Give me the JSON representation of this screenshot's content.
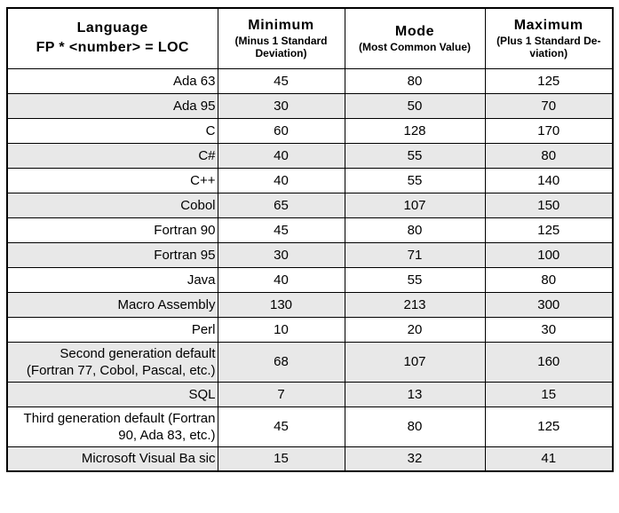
{
  "colors": {
    "shaded_row": "#e8e8e8",
    "border": "#000000",
    "background": "#ffffff",
    "text": "#000000"
  },
  "table": {
    "header": {
      "language_title": "Language",
      "language_sub": "FP * <number> = LOC",
      "minimum_title": "Minimum",
      "minimum_sub": "(Minus 1 Standard Deviation)",
      "mode_title": "Mode",
      "mode_sub": "(Most Common Value)",
      "maximum_title": "Maximum",
      "maximum_sub": "(Plus 1 Standard De­viation)"
    },
    "rows": [
      {
        "language": "Ada 63",
        "minimum": "45",
        "mode": "80",
        "maximum": "125",
        "shaded": false
      },
      {
        "language": "Ada 95",
        "minimum": "30",
        "mode": "50",
        "maximum": "70",
        "shaded": true
      },
      {
        "language": "C",
        "minimum": "60",
        "mode": "128",
        "maximum": "170",
        "shaded": false
      },
      {
        "language": "C#",
        "minimum": "40",
        "mode": "55",
        "maximum": "80",
        "shaded": true
      },
      {
        "language": "C++",
        "minimum": "40",
        "mode": "55",
        "maximum": "140",
        "shaded": false
      },
      {
        "language": "Cobol",
        "minimum": "65",
        "mode": "107",
        "maximum": "150",
        "shaded": true
      },
      {
        "language": "Fortran 90",
        "minimum": "45",
        "mode": "80",
        "maximum": "125",
        "shaded": false
      },
      {
        "language": "Fortran 95",
        "minimum": "30",
        "mode": "71",
        "maximum": "100",
        "shaded": true
      },
      {
        "language": "Java",
        "minimum": "40",
        "mode": "55",
        "maximum": "80",
        "shaded": false
      },
      {
        "language": "Macro Assembly",
        "minimum": "130",
        "mode": "213",
        "maximum": "300",
        "shaded": true
      },
      {
        "language": "Perl",
        "minimum": "10",
        "mode": "20",
        "maximum": "30",
        "shaded": false
      },
      {
        "language": "Second generation default (Fortran 77, Cobol, Pascal, etc.)",
        "minimum": "68",
        "mode": "107",
        "maximum": "160",
        "shaded": true
      },
      {
        "language": "SQL",
        "minimum": "7",
        "mode": "13",
        "maximum": "15",
        "shaded": true
      },
      {
        "language": "Third generation default (Fortran 90, Ada 83, etc.)",
        "minimum": "45",
        "mode": "80",
        "maximum": "125",
        "shaded": false
      },
      {
        "language": "Microsoft Visual Ba sic",
        "minimum": "15",
        "mode": "32",
        "maximum": "41",
        "shaded": true
      }
    ]
  }
}
